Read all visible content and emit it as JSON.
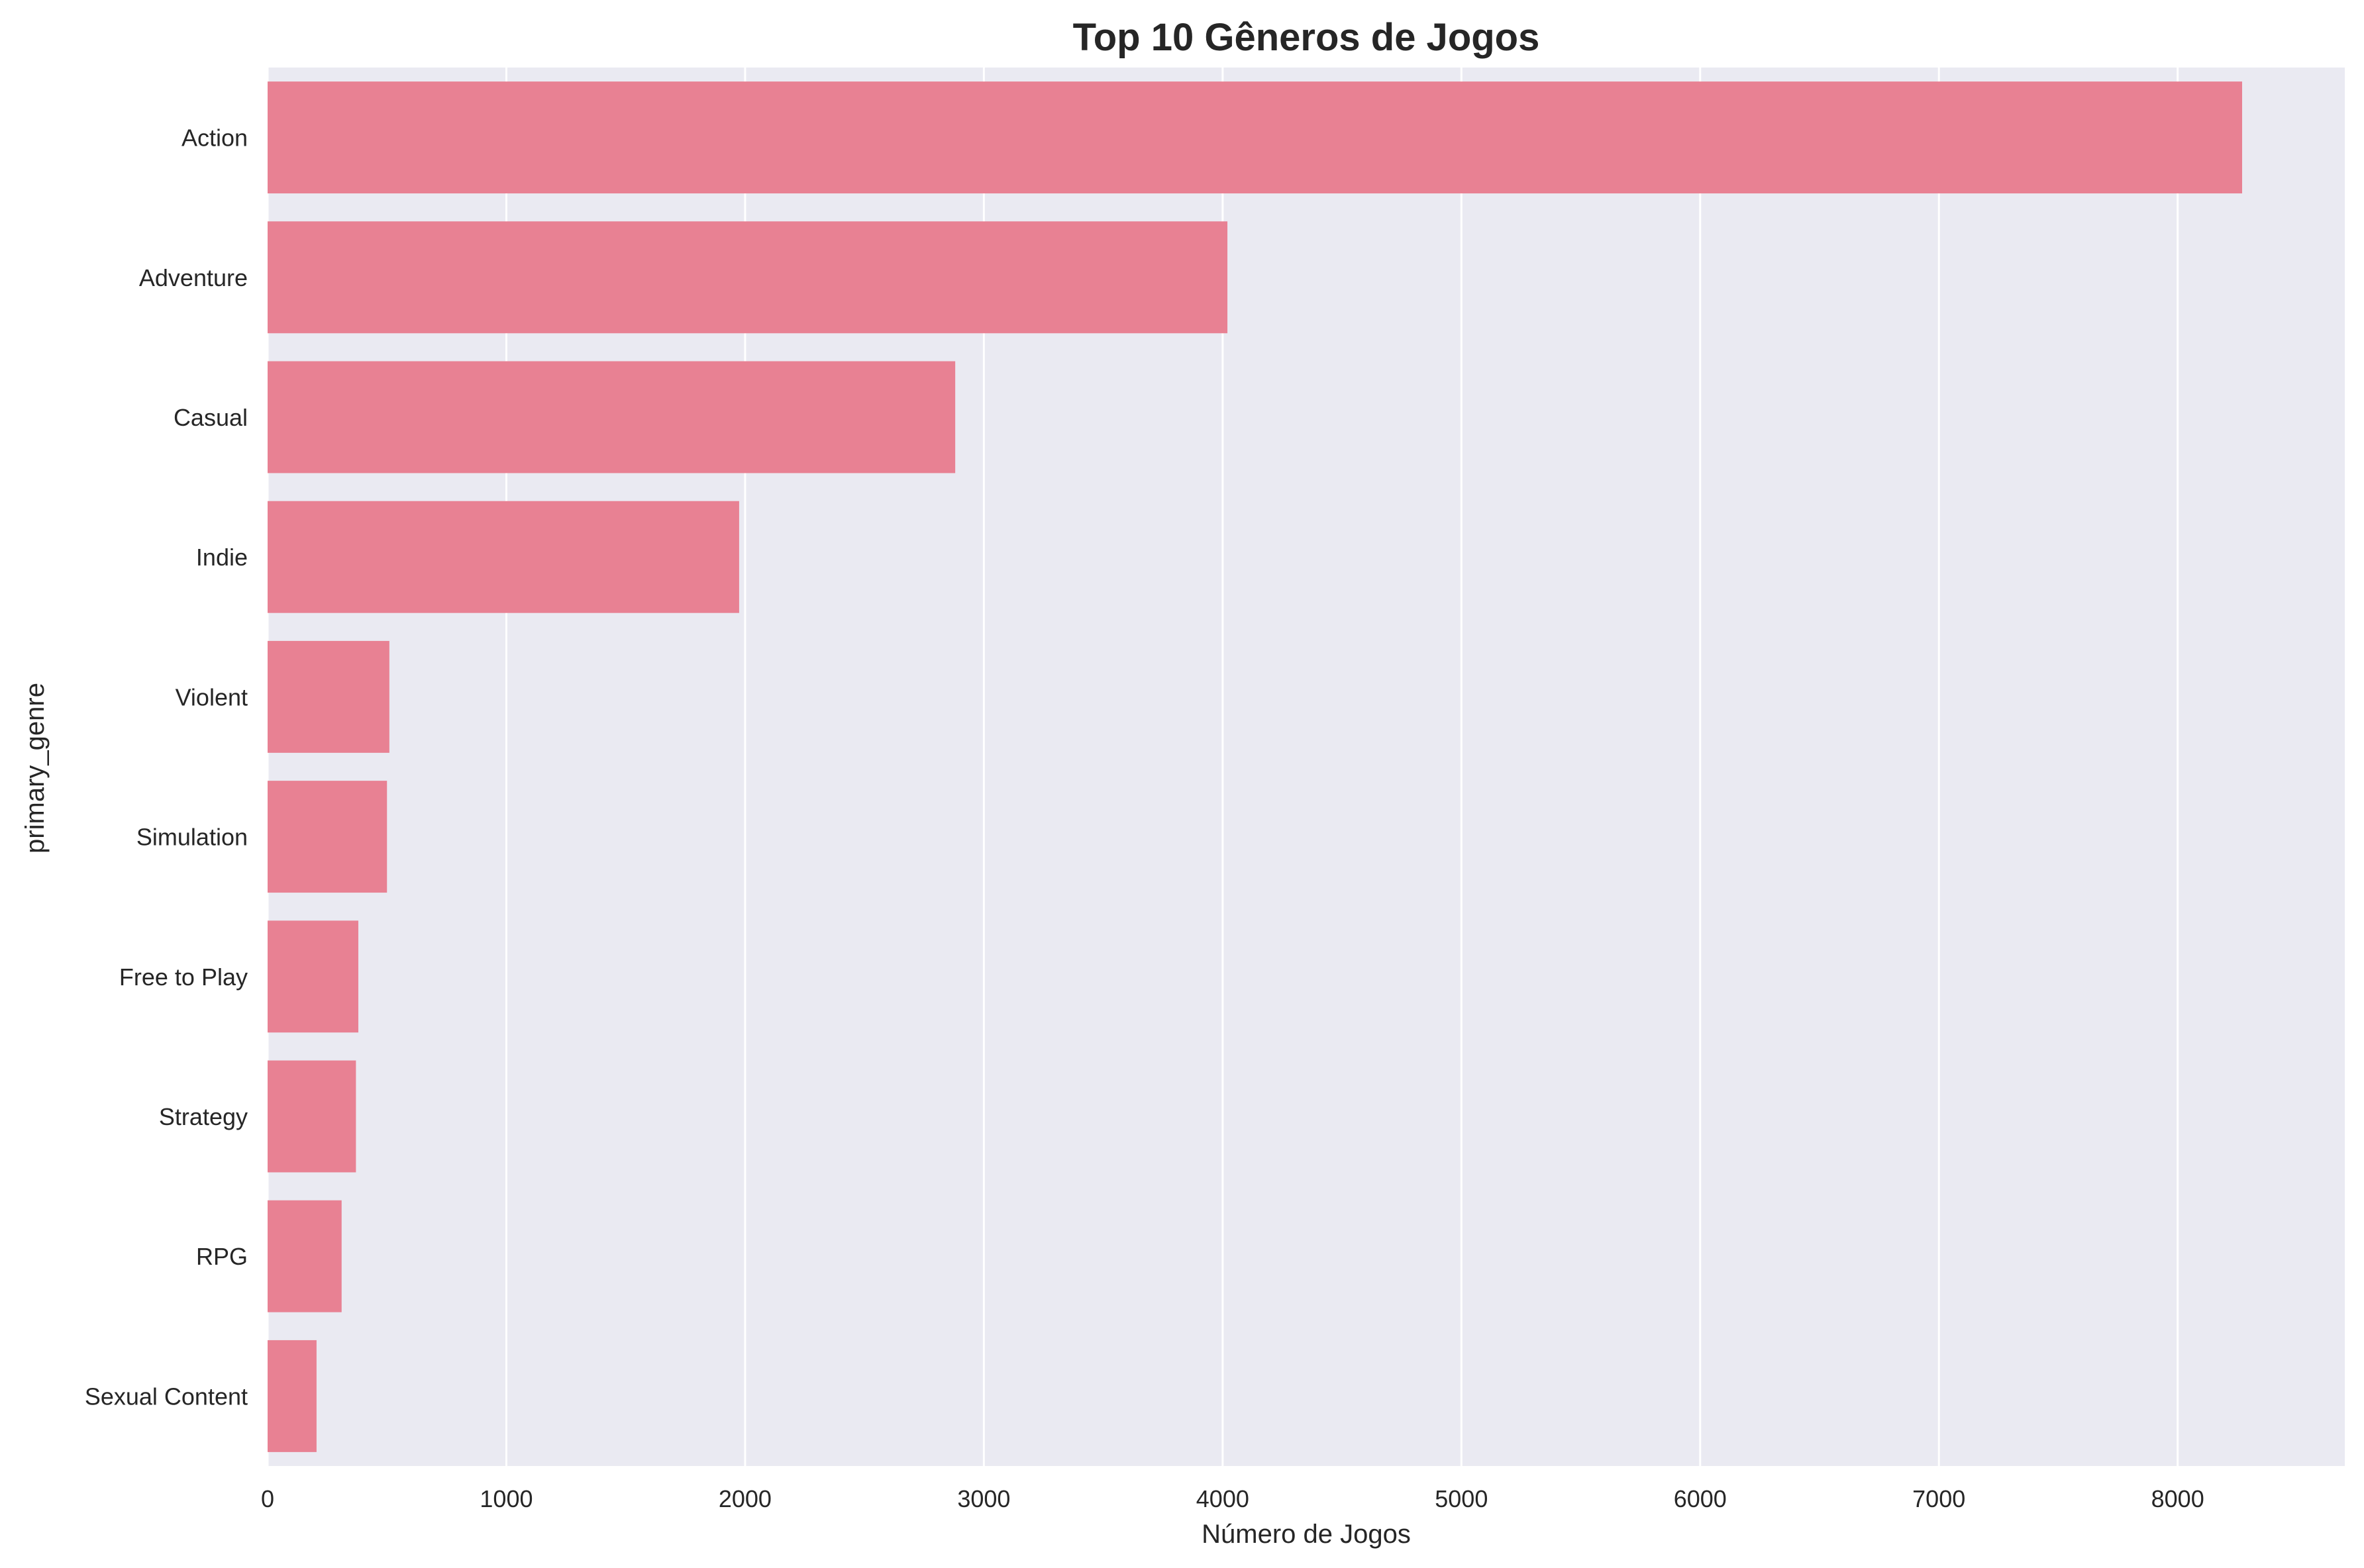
{
  "chart_data": {
    "type": "bar",
    "orientation": "horizontal",
    "title": "Top 10 Gêneros de Jogos",
    "xlabel": "Número de Jogos",
    "ylabel": "primary_genre",
    "categories": [
      "Action",
      "Adventure",
      "Casual",
      "Indie",
      "Violent",
      "Simulation",
      "Free to Play",
      "Strategy",
      "RPG",
      "Sexual Content"
    ],
    "values": [
      8270,
      4020,
      2880,
      1975,
      510,
      500,
      380,
      370,
      310,
      205
    ],
    "xlim": [
      0,
      8700
    ],
    "xticks": [
      "0",
      "1000",
      "2000",
      "3000",
      "4000",
      "5000",
      "6000",
      "7000",
      "8000"
    ],
    "grid": true,
    "colors": {
      "bar": "#e88193",
      "background": "#eaeaf2",
      "grid": "#ffffff",
      "text": "#262626"
    }
  }
}
